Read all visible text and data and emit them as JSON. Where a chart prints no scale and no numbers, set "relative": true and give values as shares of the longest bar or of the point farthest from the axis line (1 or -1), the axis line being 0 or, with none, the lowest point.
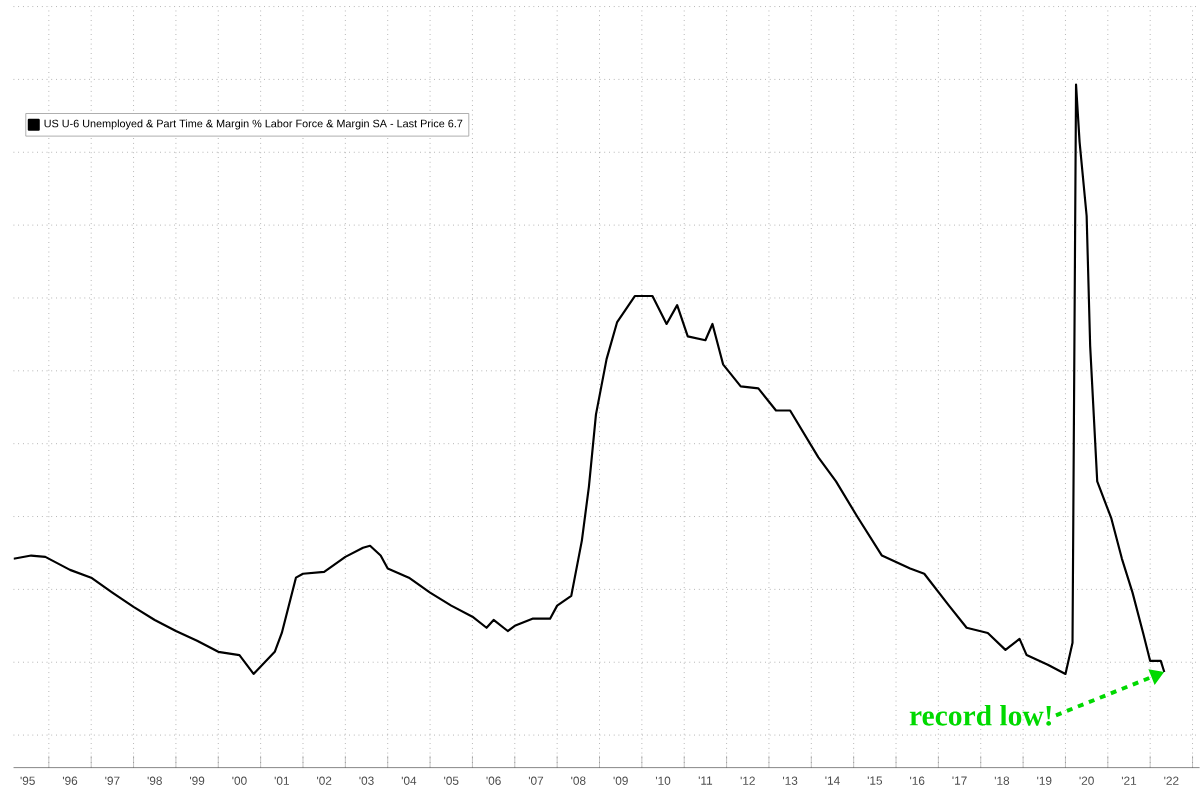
{
  "chart_data": {
    "type": "line",
    "relative": true,
    "grid": true,
    "legend": "top left",
    "x": [
      "1995-03",
      "1995-08",
      "1995-12",
      "1996-07",
      "1997-01",
      "1997-07",
      "1998-01",
      "1998-07",
      "1999-01",
      "1999-07",
      "2000-01",
      "2000-07",
      "2000-11",
      "2001-05",
      "2001-07",
      "2001-11",
      "2002-01",
      "2002-07",
      "2003-01",
      "2003-06",
      "2003-08",
      "2003-11",
      "2004-01",
      "2004-07",
      "2005-01",
      "2005-07",
      "2006-01",
      "2006-05",
      "2006-07",
      "2006-11",
      "2007-01",
      "2007-06",
      "2007-11",
      "2008-01",
      "2008-05",
      "2008-08",
      "2008-10",
      "2008-12",
      "2009-03",
      "2009-06",
      "2009-11",
      "2010-04",
      "2010-08",
      "2010-11",
      "2011-02",
      "2011-07",
      "2011-09",
      "2011-12",
      "2012-05",
      "2012-10",
      "2013-03",
      "2013-07",
      "2014-03",
      "2014-08",
      "2015-02",
      "2015-09",
      "2016-05",
      "2016-09",
      "2017-04",
      "2017-09",
      "2018-03",
      "2018-08",
      "2018-12",
      "2019-02",
      "2019-08",
      "2020-01",
      "2020-03",
      "2020-04",
      "2020-05",
      "2020-07",
      "2020-08",
      "2020-10",
      "2021-02",
      "2021-05",
      "2021-08",
      "2021-11",
      "2022-01",
      "2022-04",
      "2022-05"
    ],
    "series": [
      {
        "name": "US U-6 Unemployed & Part Time & Margin % Labor Force & Margin SA - Last Price 6.7",
        "color": "#000000",
        "values": [
          0.271,
          0.276,
          0.274,
          0.254,
          0.242,
          0.219,
          0.197,
          0.177,
          0.16,
          0.145,
          0.128,
          0.123,
          0.094,
          0.128,
          0.157,
          0.242,
          0.248,
          0.251,
          0.274,
          0.288,
          0.291,
          0.276,
          0.256,
          0.242,
          0.219,
          0.199,
          0.182,
          0.165,
          0.177,
          0.16,
          0.168,
          0.179,
          0.179,
          0.199,
          0.214,
          0.299,
          0.382,
          0.493,
          0.578,
          0.635,
          0.675,
          0.675,
          0.632,
          0.661,
          0.613,
          0.607,
          0.632,
          0.57,
          0.536,
          0.533,
          0.499,
          0.499,
          0.427,
          0.39,
          0.336,
          0.276,
          0.256,
          0.248,
          0.199,
          0.165,
          0.157,
          0.131,
          0.148,
          0.123,
          0.108,
          0.094,
          0.142,
          1,
          0.912,
          0.798,
          0.598,
          0.39,
          0.333,
          0.271,
          0.219,
          0.157,
          0.114,
          0.114,
          0.097
        ]
      }
    ],
    "xlim": [
      "1995-03",
      "2023-03"
    ],
    "xticks": [
      {
        "value": "1995-07",
        "label": "'95"
      },
      {
        "value": "1996-01",
        "label": null
      },
      {
        "value": "1996-07",
        "label": "'96"
      },
      {
        "value": "1997-01",
        "label": null
      },
      {
        "value": "1997-07",
        "label": "'97"
      },
      {
        "value": "1998-01",
        "label": null
      },
      {
        "value": "1998-07",
        "label": "'98"
      },
      {
        "value": "1999-01",
        "label": null
      },
      {
        "value": "1999-07",
        "label": "'99"
      },
      {
        "value": "2000-01",
        "label": null
      },
      {
        "value": "2000-07",
        "label": "'00"
      },
      {
        "value": "2001-01",
        "label": null
      },
      {
        "value": "2001-07",
        "label": "'01"
      },
      {
        "value": "2002-01",
        "label": null
      },
      {
        "value": "2002-07",
        "label": "'02"
      },
      {
        "value": "2003-01",
        "label": null
      },
      {
        "value": "2003-07",
        "label": "'03"
      },
      {
        "value": "2004-01",
        "label": null
      },
      {
        "value": "2004-07",
        "label": "'04"
      },
      {
        "value": "2005-01",
        "label": null
      },
      {
        "value": "2005-07",
        "label": "'05"
      },
      {
        "value": "2006-01",
        "label": null
      },
      {
        "value": "2006-07",
        "label": "'06"
      },
      {
        "value": "2007-01",
        "label": null
      },
      {
        "value": "2007-07",
        "label": "'07"
      },
      {
        "value": "2008-01",
        "label": null
      },
      {
        "value": "2008-07",
        "label": "'08"
      },
      {
        "value": "2009-01",
        "label": null
      },
      {
        "value": "2009-07",
        "label": "'09"
      },
      {
        "value": "2010-01",
        "label": null
      },
      {
        "value": "2010-07",
        "label": "'10"
      },
      {
        "value": "2011-01",
        "label": null
      },
      {
        "value": "2011-07",
        "label": "'11"
      },
      {
        "value": "2012-01",
        "label": null
      },
      {
        "value": "2012-07",
        "label": "'12"
      },
      {
        "value": "2013-01",
        "label": null
      },
      {
        "value": "2013-07",
        "label": "'13"
      },
      {
        "value": "2014-01",
        "label": null
      },
      {
        "value": "2014-07",
        "label": "'14"
      },
      {
        "value": "2015-01",
        "label": null
      },
      {
        "value": "2015-07",
        "label": "'15"
      },
      {
        "value": "2016-01",
        "label": null
      },
      {
        "value": "2016-07",
        "label": "'16"
      },
      {
        "value": "2017-01",
        "label": null
      },
      {
        "value": "2017-07",
        "label": "'17"
      },
      {
        "value": "2018-01",
        "label": null
      },
      {
        "value": "2018-07",
        "label": "'18"
      },
      {
        "value": "2019-01",
        "label": null
      },
      {
        "value": "2019-07",
        "label": "'19"
      },
      {
        "value": "2020-01",
        "label": null
      },
      {
        "value": "2020-07",
        "label": "'20"
      },
      {
        "value": "2021-01",
        "label": null
      },
      {
        "value": "2021-07",
        "label": "'21"
      },
      {
        "value": "2022-01",
        "label": null
      },
      {
        "value": "2022-07",
        "label": "'22"
      },
      {
        "value": "2023-01",
        "label": null
      }
    ],
    "annotations": [
      {
        "text": "record low!",
        "x": "2022-05",
        "y": 0.097
      }
    ]
  }
}
